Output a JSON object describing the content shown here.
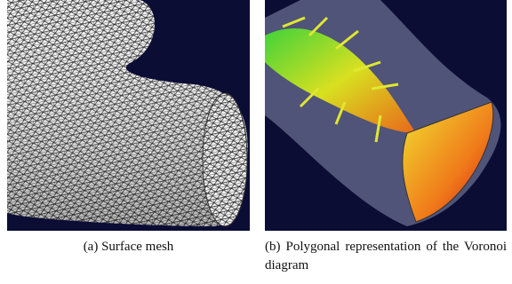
{
  "panels": [
    {
      "label": "(a)",
      "caption": "Surface mesh"
    },
    {
      "label": "(b)",
      "caption": "Polygonal representation of the Voronoi diagram"
    }
  ]
}
